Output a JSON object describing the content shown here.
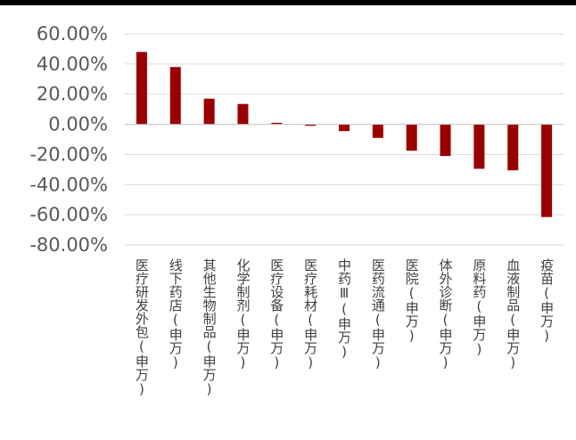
{
  "chart_data": {
    "type": "bar",
    "title": "",
    "xlabel": "",
    "ylabel": "",
    "categories": [
      "医疗研发外包(申万)",
      "线下药店(申万)",
      "其他生物制品(申万)",
      "化学制剂(申万)",
      "医疗设备(申万)",
      "医疗耗材(申万)",
      "中药Ⅲ(申万)",
      "医药流通(申万)",
      "医院(申万)",
      "体外诊断(申万)",
      "原料药(申万)",
      "血液制品(申万)",
      "疫苗(申万)"
    ],
    "values": [
      48.0,
      38.0,
      17.0,
      13.5,
      1.0,
      -1.0,
      -4.5,
      -9.0,
      -17.5,
      -21.0,
      -29.5,
      -30.5,
      -61.5
    ],
    "ylim": [
      -80,
      60
    ],
    "yticks": [
      "60.00%",
      "40.00%",
      "20.00%",
      "0.00%",
      "-20.00%",
      "-40.00%",
      "-60.00%",
      "-80.00%"
    ],
    "ytick_values": [
      60,
      40,
      20,
      0,
      -20,
      -40,
      -60,
      -80
    ],
    "grid": true,
    "legend": "none",
    "bar_color": "#9b0000",
    "grid_color": "#d9d9d9"
  }
}
